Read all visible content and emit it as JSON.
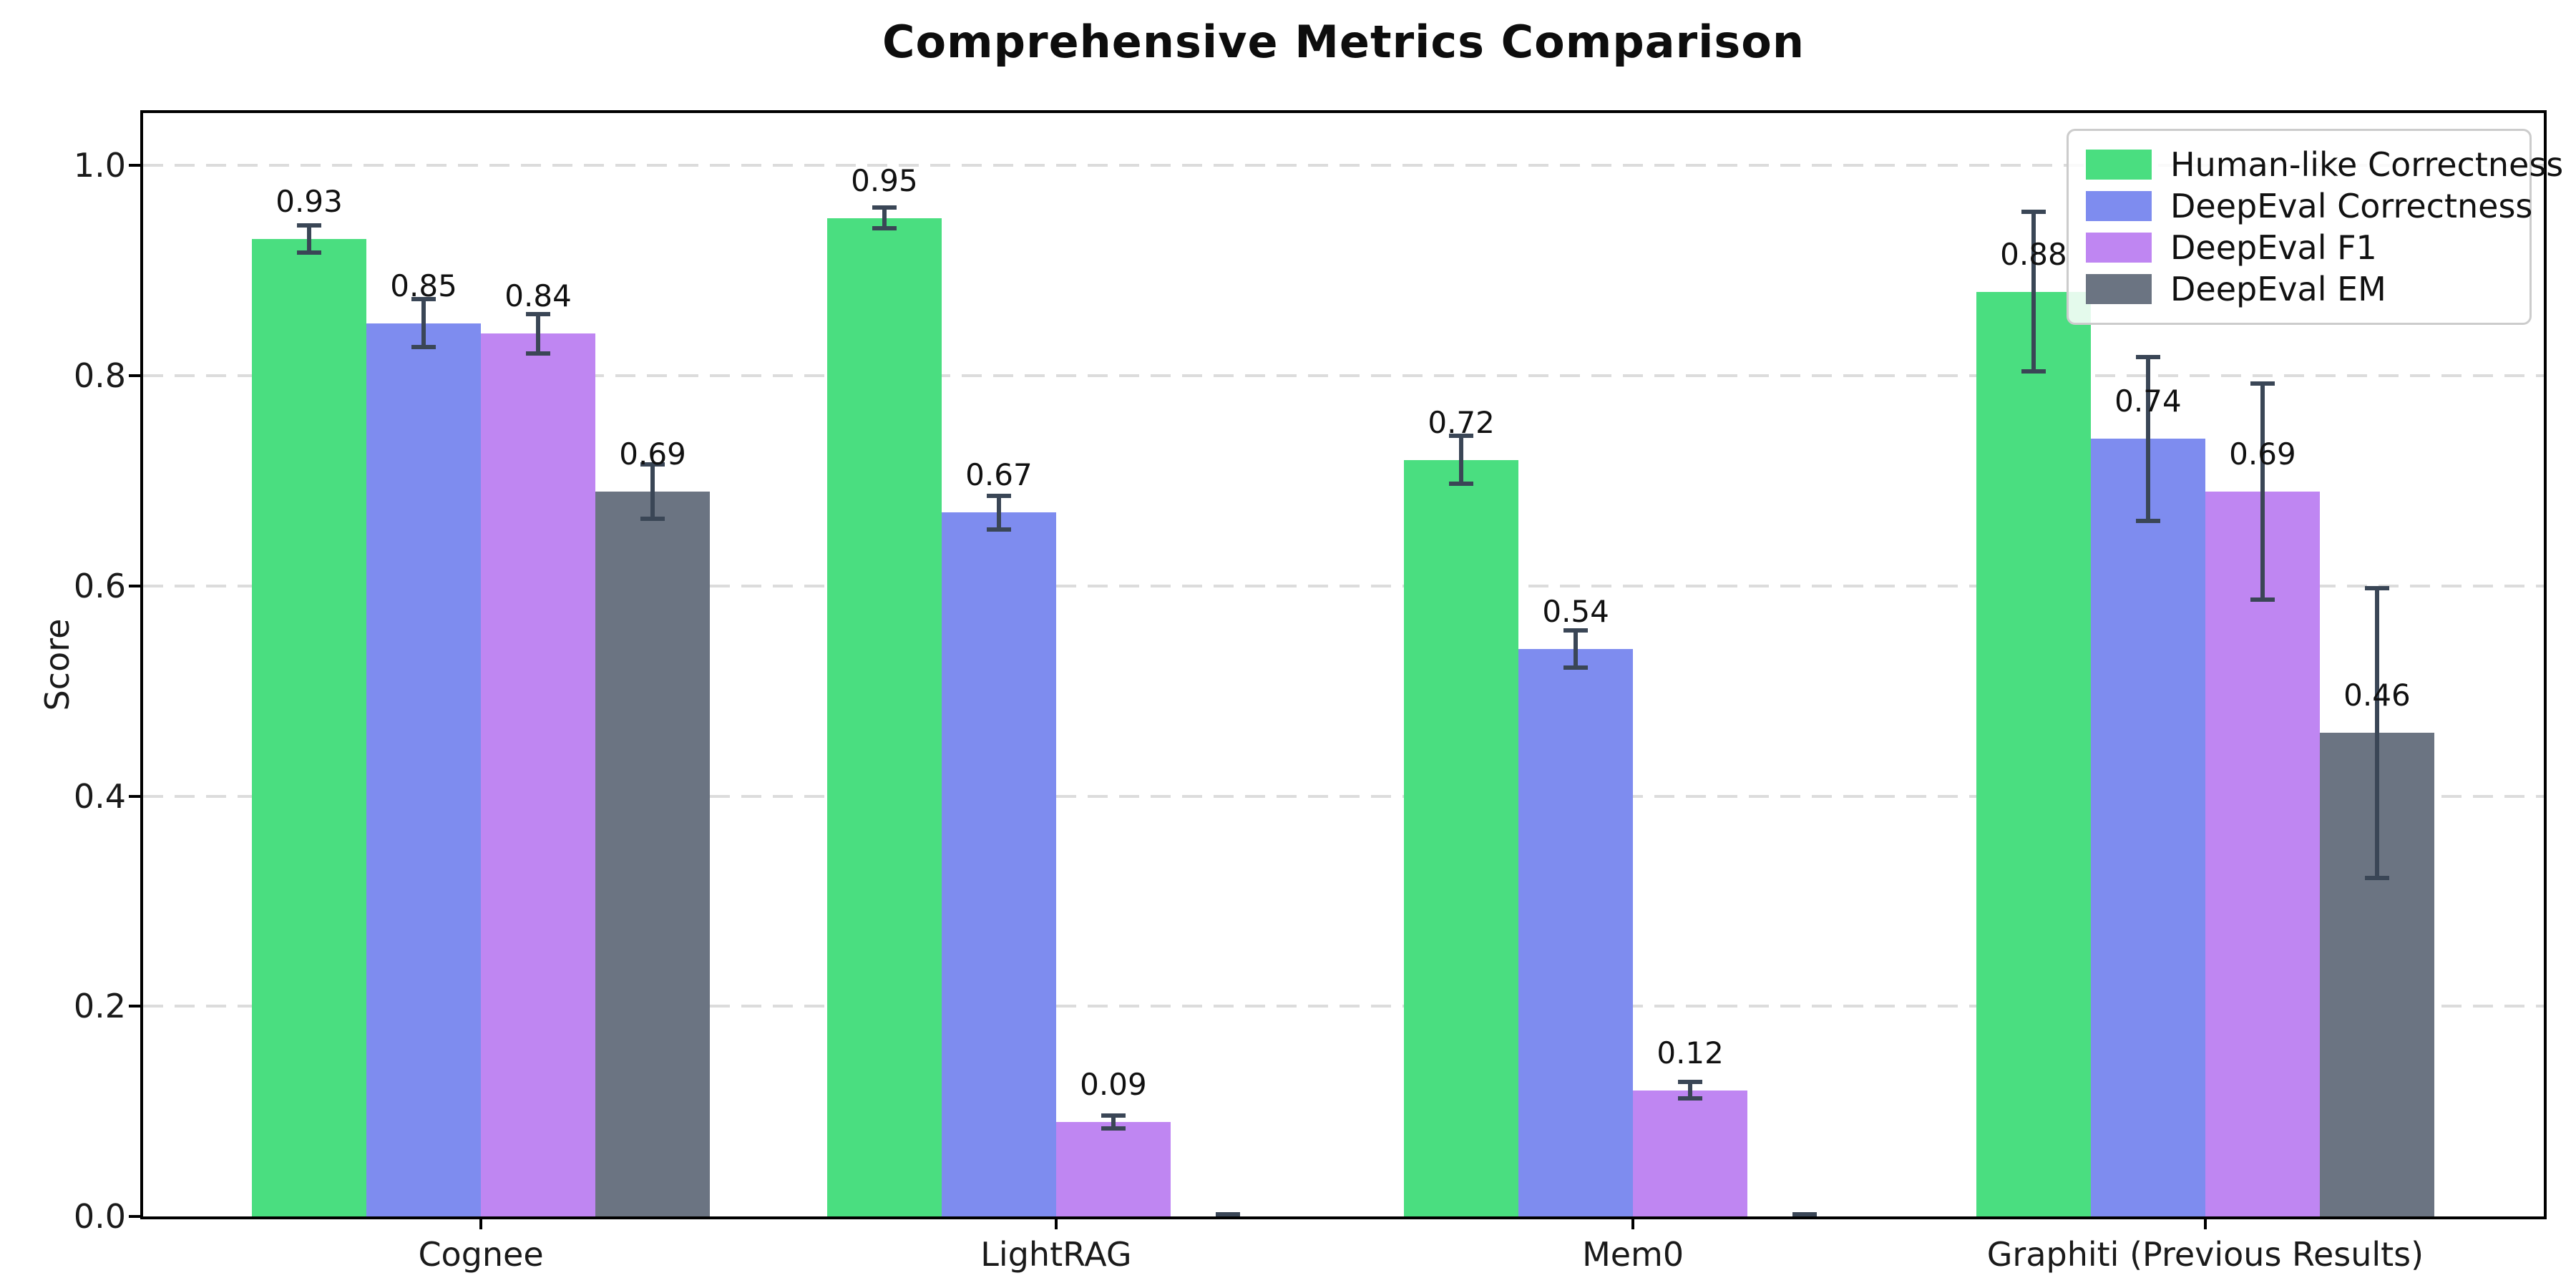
{
  "chart_data": {
    "type": "bar",
    "title": "Comprehensive Metrics Comparison",
    "ylabel": "Score",
    "categories": [
      "Cognee",
      "LightRAG",
      "Mem0",
      "Graphiti (Previous Results)"
    ],
    "series": [
      {
        "name": "Human-like Correctness",
        "color": "#4ade80",
        "values": [
          0.93,
          0.95,
          0.72,
          0.88
        ],
        "errors": [
          0.015,
          0.012,
          0.025,
          0.078
        ],
        "labels": [
          "0.93",
          "0.95",
          "0.72",
          "0.88"
        ]
      },
      {
        "name": "DeepEval Correctness",
        "color": "#7e8cef",
        "values": [
          0.85,
          0.67,
          0.54,
          0.74
        ],
        "errors": [
          0.025,
          0.018,
          0.02,
          0.08
        ],
        "labels": [
          "0.85",
          "0.67",
          "0.54",
          "0.74"
        ]
      },
      {
        "name": "DeepEval F1",
        "color": "#bf86f2",
        "values": [
          0.84,
          0.09,
          0.12,
          0.69
        ],
        "errors": [
          0.021,
          0.008,
          0.01,
          0.105
        ],
        "labels": [
          "0.84",
          "0.09",
          "0.12",
          "0.69"
        ]
      },
      {
        "name": "DeepEval EM",
        "color": "#6b7482",
        "values": [
          0.69,
          0.0,
          0.0,
          0.46
        ],
        "errors": [
          0.028,
          0.004,
          0.004,
          0.14
        ],
        "labels": [
          "0.69",
          "",
          "",
          "0.46"
        ]
      }
    ],
    "yticks": [
      "0.0",
      "0.2",
      "0.4",
      "0.6",
      "0.8",
      "1.0"
    ],
    "ytick_values": [
      0.0,
      0.2,
      0.4,
      0.6,
      0.8,
      1.0
    ],
    "ylim": [
      0,
      1.05
    ],
    "grid": "horizontal-dashed",
    "grid_color": "#dcdcdc",
    "error_bar_color": "#3a4656",
    "legend_position": "upper right",
    "bar_value_labels": true
  }
}
